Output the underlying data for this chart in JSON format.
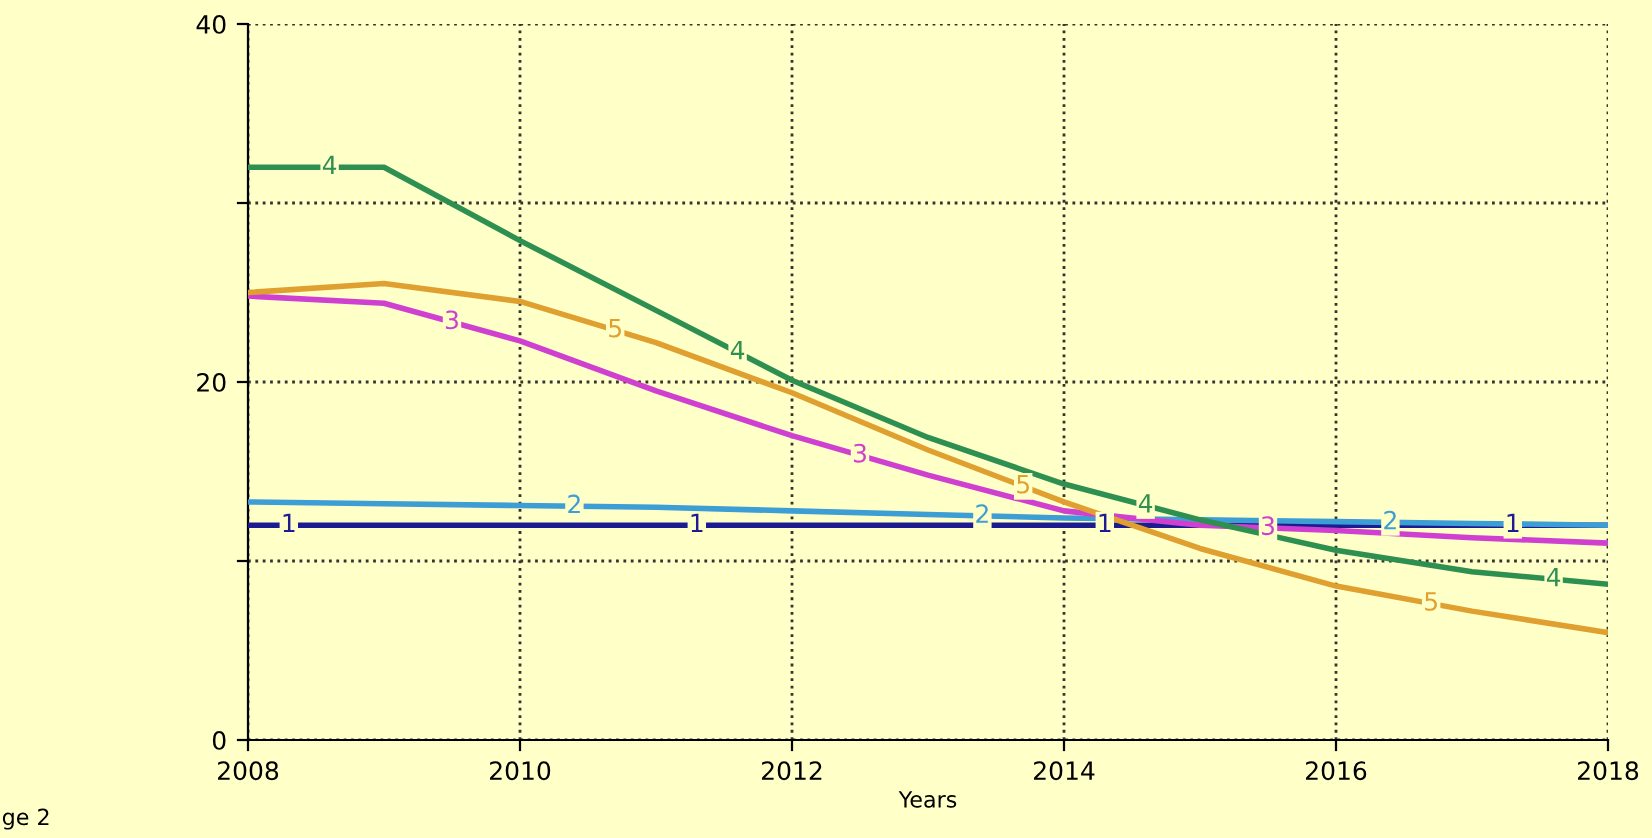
{
  "chart_data": {
    "type": "line",
    "xlabel": "Years",
    "annotations": [
      "ge 2"
    ],
    "x": [
      2008,
      2009,
      2010,
      2011,
      2012,
      2013,
      2014,
      2015,
      2016,
      2017,
      2018
    ],
    "series": [
      {
        "name": "1",
        "color": "#1c1c90",
        "values": [
          12,
          12,
          12,
          12,
          12,
          12,
          12,
          12,
          12,
          12,
          12
        ]
      },
      {
        "name": "2",
        "color": "#3c9ed4",
        "values": [
          13.3,
          13.2,
          13.1,
          13.0,
          12.8,
          12.6,
          12.4,
          12.3,
          12.2,
          12.1,
          12.0
        ]
      },
      {
        "name": "3",
        "color": "#d040d0",
        "values": [
          24.8,
          24.4,
          22.3,
          19.5,
          17.0,
          14.8,
          12.8,
          12.0,
          11.7,
          11.3,
          11.0
        ]
      },
      {
        "name": "4",
        "color": "#2e9050",
        "values": [
          32,
          32,
          27.9,
          24.0,
          20.1,
          16.9,
          14.3,
          12.3,
          10.6,
          9.4,
          8.7
        ]
      },
      {
        "name": "5",
        "color": "#e0a030",
        "values": [
          25,
          25.5,
          24.5,
          22.2,
          19.4,
          16.2,
          13.3,
          10.7,
          8.6,
          7.2,
          6.0
        ]
      }
    ],
    "xlim": [
      2008,
      2018
    ],
    "xticks": [
      2008,
      2010,
      2012,
      2014,
      2016,
      2018
    ],
    "ylim": [
      0,
      40
    ],
    "yticks": [
      0,
      {
        "value": 10,
        "label": null
      },
      20,
      {
        "value": 30,
        "label": null
      },
      40
    ],
    "grid": true,
    "line_style": "solid",
    "marker": "none"
  }
}
